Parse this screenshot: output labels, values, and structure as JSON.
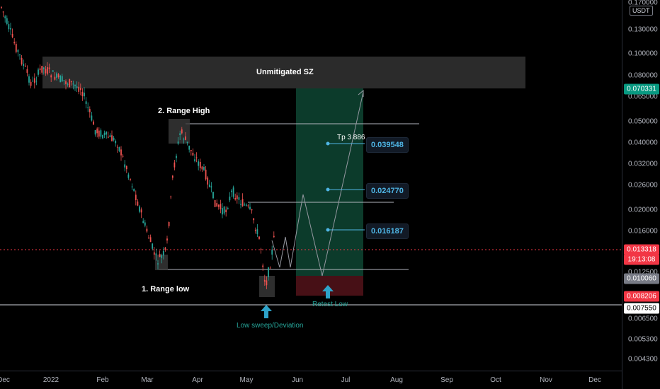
{
  "quote_currency": "USDT",
  "price_axis_ticks": [
    "0.170000",
    "0.130000",
    "0.100000",
    "0.080000",
    "0.065000",
    "0.050000",
    "0.040000",
    "0.032000",
    "0.026000",
    "0.020000",
    "0.016000",
    "0.012500",
    "0.006500",
    "0.005300",
    "0.004300"
  ],
  "price_badges": {
    "tp_level": {
      "text": "0.070331",
      "color": "#089981"
    },
    "current_price": {
      "text": "0.013318",
      "color": "#f23645"
    },
    "countdown": {
      "text": "19:13:08",
      "color": "#f23645"
    },
    "entry": {
      "text": "0.010060",
      "color": "#787b86"
    },
    "stop": {
      "text": "0.008206",
      "color": "#f23645"
    },
    "range_line": {
      "text": "0.007550",
      "color": "#ffffff"
    }
  },
  "time_axis_ticks": [
    "Dec",
    "2022",
    "Feb",
    "Mar",
    "Apr",
    "May",
    "Jun",
    "Jul",
    "Aug",
    "Sep",
    "Oct",
    "Nov",
    "Dec"
  ],
  "annotations": {
    "supply_zone": "Unmitigated SZ",
    "range_high": "2. Range High",
    "range_low": "1. Range low",
    "low_sweep": "Low sweep/Deviation",
    "retest_low": "Retest Low",
    "tp3": "Tp 3 886"
  },
  "targets": [
    "0.039548",
    "0.024770",
    "0.016187"
  ],
  "colors": {
    "up": "#26a69a",
    "down": "#ef5350",
    "target": "#4fb6e6",
    "zone": "#2a2a2a",
    "long_zone": "#0e3a2c",
    "stop_zone": "#4a0e14"
  }
}
